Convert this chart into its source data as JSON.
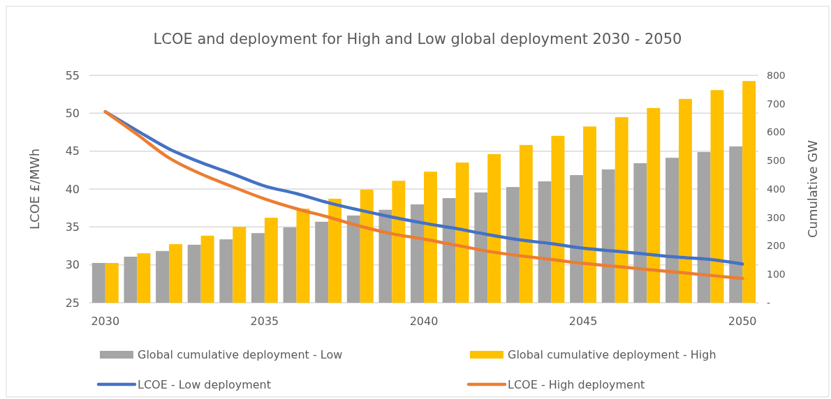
{
  "chart_data": {
    "type": "bar",
    "title": "LCOE and deployment for High and Low global deployment 2030 - 2050",
    "ylabel": "LCOE £/MWh",
    "y2label": "Cumulative GW",
    "categories": [
      "2030",
      null,
      null,
      null,
      null,
      "2035",
      null,
      null,
      null,
      null,
      "2040",
      null,
      null,
      null,
      null,
      "2045",
      null,
      null,
      null,
      null,
      "2050"
    ],
    "series": [
      {
        "name": "Global cumulative deployment - Low",
        "axis": "y2",
        "color": "#a5a5a5",
        "values": [
          140,
          162,
          182,
          204,
          223,
          245,
          265,
          285,
          307,
          327,
          346,
          368,
          388,
          407,
          427,
          449,
          469,
          491,
          510,
          530,
          550
        ]
      },
      {
        "name": "Global cumulative deployment - High",
        "axis": "y2",
        "color": "#ffc000",
        "values": [
          140,
          174,
          206,
          236,
          267,
          299,
          331,
          366,
          398,
          429,
          461,
          493,
          523,
          555,
          587,
          620,
          653,
          685,
          717,
          748,
          780
        ]
      },
      {
        "name": "LCOE - Low deployment",
        "type": "line",
        "axis": "y",
        "color": "#4472c4",
        "values": [
          50.2,
          47.7,
          45.3,
          43.5,
          42.0,
          40.4,
          39.4,
          38.2,
          37.2,
          36.3,
          35.5,
          34.8,
          34.0,
          33.3,
          32.8,
          32.2,
          31.8,
          31.4,
          31.0,
          30.7,
          30.1
        ]
      },
      {
        "name": "LCOE - High deployment",
        "type": "line",
        "axis": "y",
        "color": "#ed7d31",
        "values": [
          50.2,
          47.2,
          44.1,
          42.0,
          40.3,
          38.7,
          37.4,
          36.3,
          35.1,
          34.1,
          33.4,
          32.6,
          31.8,
          31.2,
          30.7,
          30.2,
          29.8,
          29.4,
          29.0,
          28.6,
          28.2
        ]
      }
    ],
    "ylim": [
      25,
      55
    ],
    "yticks": [
      25,
      30,
      35,
      40,
      45,
      50,
      55
    ],
    "y2lim": [
      0,
      800
    ],
    "y2ticks": [
      {
        "value": 0,
        "label": "-"
      },
      100,
      200,
      300,
      400,
      500,
      600,
      700,
      800
    ],
    "grid": "y",
    "legend": "bottom",
    "marker": "none",
    "line_style": "solid"
  }
}
